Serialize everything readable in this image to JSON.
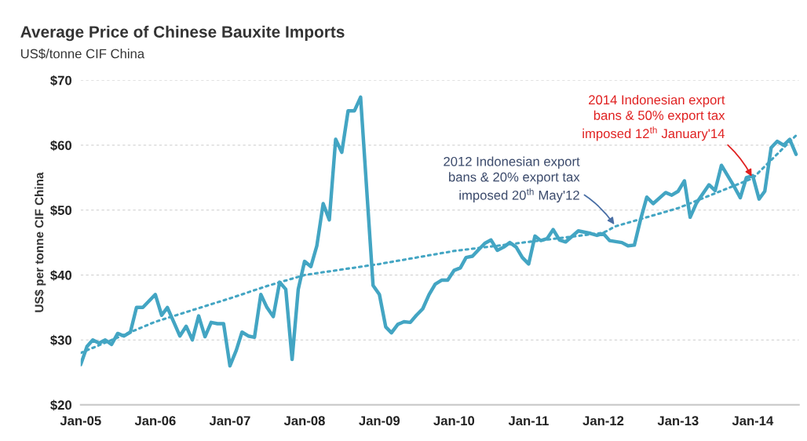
{
  "chart_data": {
    "type": "line",
    "title": "Average Price of Chinese Bauxite Imports",
    "subtitle": "US$/tonne CIF China",
    "ylabel": "US$ per tonne CIF China",
    "series": [
      {
        "color": "#43a5c3",
        "line_style": "solid",
        "x": [
          "2005-01",
          "2005-02",
          "2005-03",
          "2005-04",
          "2005-05",
          "2005-06",
          "2005-07",
          "2005-08",
          "2005-09",
          "2005-10",
          "2005-11",
          "2006-01",
          "2006-02",
          "2006-03",
          "2006-05",
          "2006-06",
          "2006-07",
          "2006-08",
          "2006-09",
          "2006-10",
          "2006-11",
          "2006-12",
          "2007-01",
          "2007-02",
          "2007-03",
          "2007-04",
          "2007-05",
          "2007-06",
          "2007-07",
          "2007-08",
          "2007-09",
          "2007-10",
          "2007-11",
          "2007-12",
          "2008-01",
          "2008-02",
          "2008-03",
          "2008-04",
          "2008-05",
          "2008-06",
          "2008-07",
          "2008-08",
          "2008-09",
          "2008-10",
          "2008-12",
          "2009-01",
          "2009-02",
          "2009-03",
          "2009-04",
          "2009-05",
          "2009-06",
          "2009-07",
          "2009-08",
          "2009-09",
          "2009-10",
          "2009-11",
          "2009-12",
          "2010-01",
          "2010-02",
          "2010-03",
          "2010-04",
          "2010-05",
          "2010-06",
          "2010-07",
          "2010-08",
          "2010-09",
          "2010-10",
          "2010-11",
          "2010-12",
          "2011-01",
          "2011-02",
          "2011-03",
          "2011-04",
          "2011-05",
          "2011-06",
          "2011-07",
          "2011-09",
          "2011-11",
          "2011-12",
          "2012-01",
          "2012-02",
          "2012-04",
          "2012-05",
          "2012-06",
          "2012-07",
          "2012-08",
          "2012-09",
          "2012-11",
          "2012-12",
          "2013-01",
          "2013-02",
          "2013-03",
          "2013-04",
          "2013-06",
          "2013-07",
          "2013-08",
          "2013-10",
          "2013-11",
          "2013-12",
          "2014-01",
          "2014-02",
          "2014-03",
          "2014-04",
          "2014-05",
          "2014-06",
          "2014-07",
          "2014-08"
        ],
        "values": [
          26.2,
          29.0,
          30.0,
          29.5,
          30.0,
          29.3,
          31.0,
          30.6,
          31.2,
          35.0,
          35.0,
          37.0,
          33.8,
          35.0,
          30.6,
          32.1,
          30.0,
          33.7,
          30.5,
          32.7,
          32.5,
          32.5,
          26.0,
          28.4,
          31.2,
          30.6,
          30.4,
          37.0,
          35.0,
          33.6,
          38.9,
          37.8,
          27.0,
          37.8,
          42.1,
          41.3,
          44.5,
          51.0,
          48.5,
          60.9,
          58.9,
          65.3,
          65.3,
          67.4,
          38.4,
          37.0,
          32.0,
          31.1,
          32.4,
          32.8,
          32.7,
          33.8,
          34.8,
          37.0,
          38.6,
          39.2,
          39.2,
          40.7,
          41.1,
          42.7,
          42.9,
          43.9,
          44.9,
          45.4,
          43.8,
          44.3,
          45.0,
          44.3,
          42.7,
          41.7,
          46.0,
          45.3,
          45.6,
          47.0,
          45.4,
          45.1,
          46.8,
          46.4,
          46.1,
          46.4,
          45.3,
          45.0,
          44.5,
          44.6,
          48.5,
          52.0,
          51.0,
          52.7,
          52.3,
          52.9,
          54.5,
          48.9,
          51.1,
          53.9,
          53.0,
          56.9,
          53.7,
          51.9,
          55.0,
          55.3,
          51.7,
          52.9,
          59.6,
          60.6,
          60.0,
          60.9,
          58.6
        ]
      },
      {
        "color": "#43a5c3",
        "line_style": "dotted",
        "x": [
          "2005-01",
          "2006-01",
          "2007-01",
          "2007-07",
          "2008-01",
          "2009-01",
          "2010-01",
          "2011-01",
          "2012-01",
          "2012-03",
          "2013-01",
          "2014-01",
          "2014-08"
        ],
        "values": [
          28.0,
          32.8,
          36.4,
          38.3,
          40.0,
          41.7,
          43.7,
          45.1,
          46.5,
          47.5,
          50.3,
          54.9,
          61.5
        ]
      }
    ],
    "xlim": [
      "2005-01",
      "2014-08-15"
    ],
    "xticks": [
      {
        "value": "2005-01",
        "label": "Jan-05"
      },
      {
        "value": "2006-01",
        "label": "Jan-06"
      },
      {
        "value": "2007-01",
        "label": "Jan-07"
      },
      {
        "value": "2008-01",
        "label": "Jan-08"
      },
      {
        "value": "2009-01",
        "label": "Jan-09"
      },
      {
        "value": "2010-01",
        "label": "Jan-10"
      },
      {
        "value": "2011-01",
        "label": "Jan-11"
      },
      {
        "value": "2012-01",
        "label": "Jan-12"
      },
      {
        "value": "2013-01",
        "label": "Jan-13"
      },
      {
        "value": "2014-01",
        "label": "Jan-14"
      }
    ],
    "ylim": [
      20,
      70
    ],
    "yticks": [
      {
        "value": 20,
        "label": "$20"
      },
      {
        "value": 30,
        "label": "$30"
      },
      {
        "value": 40,
        "label": "$40"
      },
      {
        "value": 50,
        "label": "$50"
      },
      {
        "value": 60,
        "label": "$60"
      },
      {
        "value": 70,
        "label": "$70"
      }
    ],
    "grid": "y",
    "legend": false,
    "marker": "none",
    "annotations": [
      {
        "text": "2012 Indonesian export\nbans & 20% export tax\nimposed 20$^{th}$ May'12",
        "x": "2012-03",
        "y": 47.5
      },
      {
        "text": "2014 Indonesian export\nbans & 50% export tax\nimposed 12$^{th}$ January'14",
        "x": "2014-01",
        "y": 54.9
      }
    ]
  }
}
